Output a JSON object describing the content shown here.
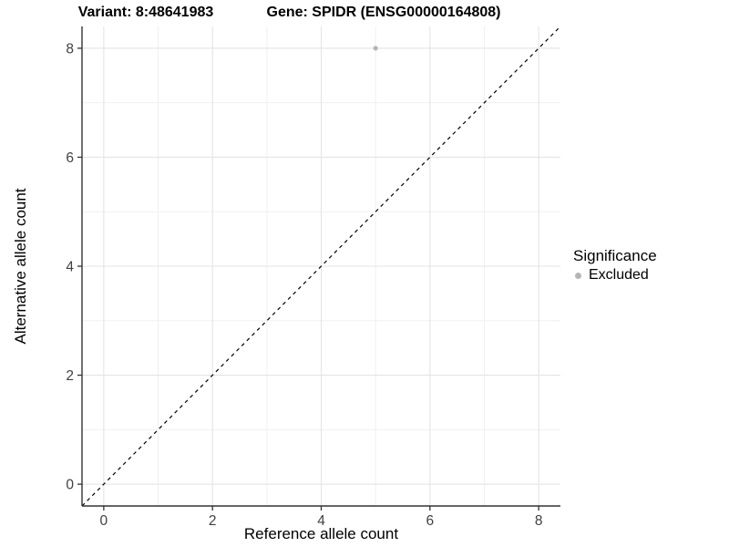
{
  "header": {
    "title_left": "Variant: 8:48641983",
    "title_right": "Gene: SPIDR (ENSG00000164808)"
  },
  "chart_data": {
    "type": "scatter",
    "xlabel": "Reference allele count",
    "ylabel": "Alternative allele count",
    "xlim": [
      -0.4,
      8.4
    ],
    "ylim": [
      -0.4,
      8.4
    ],
    "x_ticks": [
      0,
      2,
      4,
      6,
      8
    ],
    "y_ticks": [
      0,
      2,
      4,
      6,
      8
    ],
    "x_minor_ticks": [
      1,
      3,
      5,
      7
    ],
    "y_minor_ticks": [
      1,
      3,
      5,
      7
    ],
    "grid": "major and minor, light gray on white",
    "legend_position": "right",
    "series": [
      {
        "name": "Excluded",
        "marker": "circle",
        "color": "#b5b5b5",
        "points": [
          {
            "x": 5,
            "y": 8
          }
        ]
      }
    ],
    "reference_line": {
      "kind": "identity",
      "from": [
        -0.4,
        -0.4
      ],
      "to": [
        8.4,
        8.4
      ],
      "style": "dashed",
      "color": "#000000"
    }
  },
  "legend": {
    "title": "Significance",
    "items": [
      {
        "label": "Excluded",
        "color": "#b5b5b5"
      }
    ]
  },
  "colors": {
    "background": "#ffffff",
    "grid_major": "#e4e4e4",
    "grid_minor": "#f0f0f0",
    "axis_line": "#333333",
    "tick_mark": "#333333",
    "tick_label": "#404040",
    "axis_title": "#000000",
    "point": "#b5b5b5",
    "reference_line": "#000000"
  }
}
